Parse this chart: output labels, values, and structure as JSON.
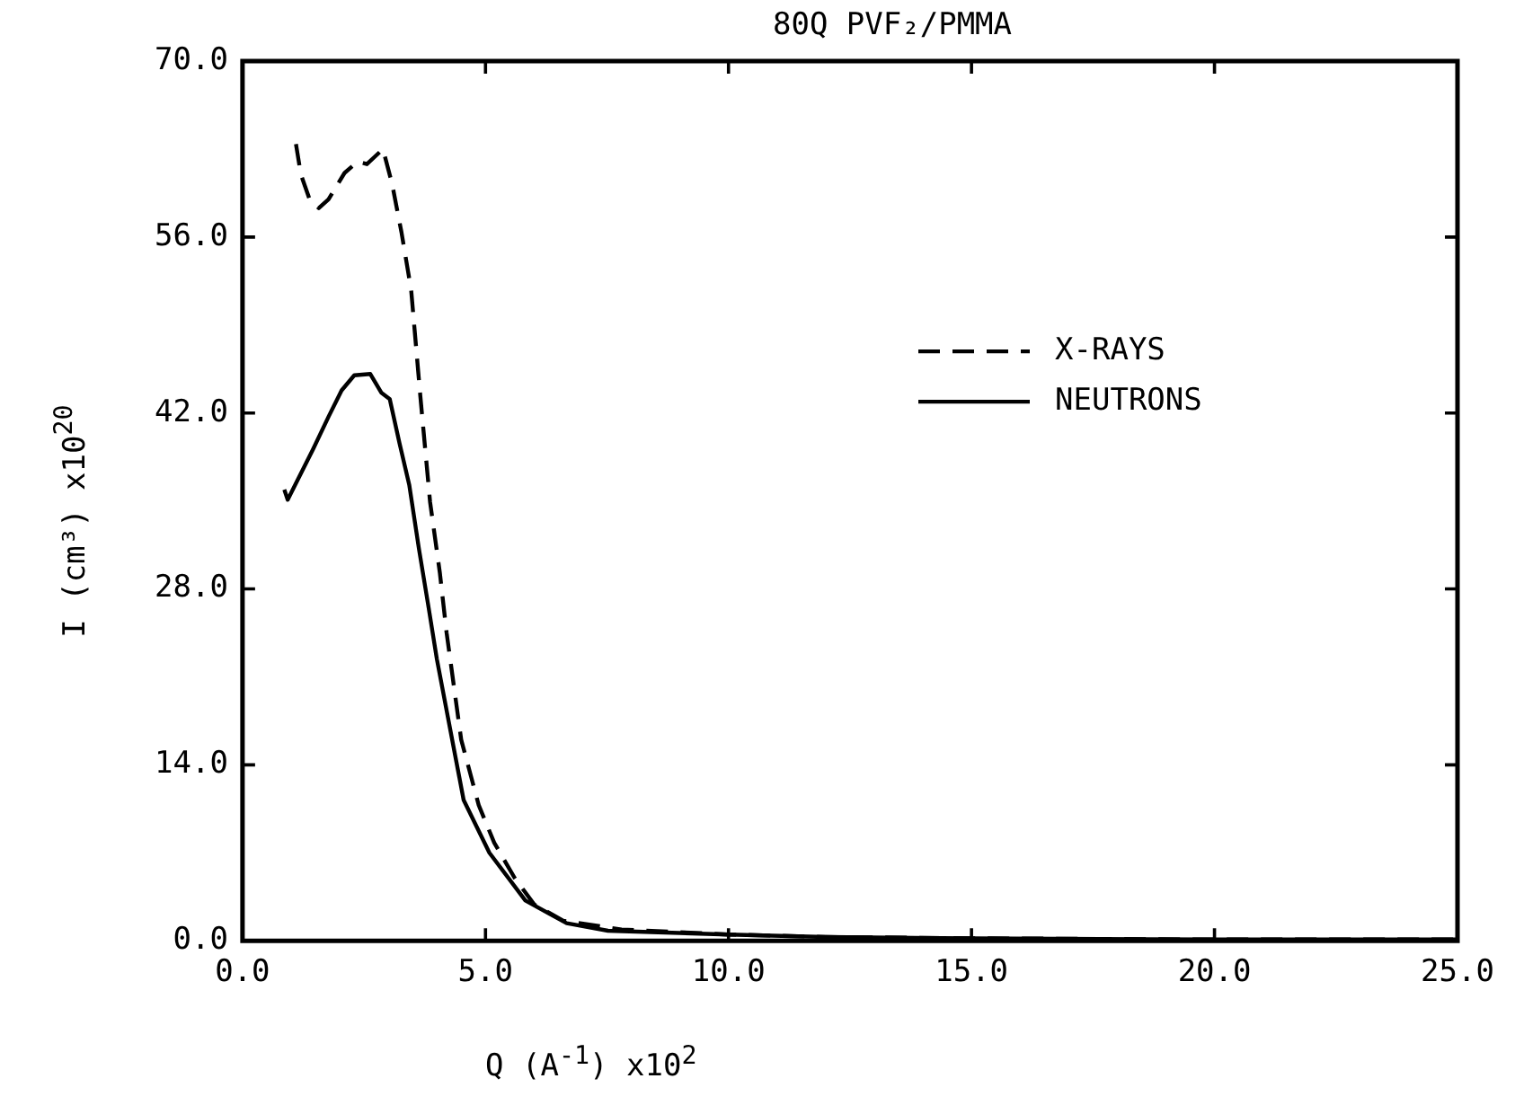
{
  "chart_data": {
    "type": "line",
    "title": "80Q PVF₂/PMMA",
    "xlabel": "Q (A$^{-1}$)     x10$^{2}$",
    "ylabel": "I (cm³)      x10$^{20}$",
    "xlim": [
      0,
      25
    ],
    "ylim": [
      0,
      70
    ],
    "xticks": [
      {
        "value": 0,
        "label": "0.0"
      },
      {
        "value": 5,
        "label": "5.0"
      },
      {
        "value": 10,
        "label": "10.0"
      },
      {
        "value": 15,
        "label": "15.0"
      },
      {
        "value": 20,
        "label": "20.0"
      },
      {
        "value": 25,
        "label": "25.0"
      }
    ],
    "yticks": [
      {
        "value": 0,
        "label": "0.0"
      },
      {
        "value": 14,
        "label": "14.0"
      },
      {
        "value": 28,
        "label": "28.0"
      },
      {
        "value": 42,
        "label": "42.0"
      },
      {
        "value": 56,
        "label": "56.0"
      },
      {
        "value": 70,
        "label": "70.0"
      }
    ],
    "grid": false,
    "legend": "right",
    "marker": "none",
    "series": [
      {
        "name": "X-RAYS",
        "color": "#000000",
        "line_style": "dashed",
        "x": [
          1.1,
          1.2,
          1.38,
          1.57,
          1.77,
          2.1,
          2.37,
          2.56,
          2.89,
          3.08,
          3.27,
          3.47,
          3.66,
          3.86,
          4.06,
          4.2,
          4.5,
          4.86,
          5.18,
          5.6,
          6.0,
          6.6,
          7.8,
          10,
          12,
          15,
          20,
          25
        ],
        "values": [
          63.4,
          61,
          59.0,
          58.3,
          59.0,
          61.1,
          62.0,
          61.8,
          63.0,
          60.2,
          56.4,
          51.8,
          43.3,
          34.9,
          29.3,
          24.5,
          16,
          10.8,
          7.8,
          5,
          2.9,
          1.6,
          0.9,
          0.5,
          0.3,
          0.2,
          0.1,
          0.1
        ]
      },
      {
        "name": "NEUTRONS",
        "color": "#000000",
        "line_style": "solid",
        "x": [
          0.86,
          0.93,
          1.45,
          1.77,
          2.04,
          2.3,
          2.63,
          2.86,
          3.03,
          3.23,
          3.43,
          3.63,
          3.83,
          4.0,
          4.55,
          5.08,
          5.82,
          6.67,
          7.52,
          10,
          12,
          15,
          20,
          25
        ],
        "values": [
          35.9,
          35.1,
          39.1,
          41.7,
          43.8,
          45.0,
          45.1,
          43.6,
          43.1,
          39.6,
          36.3,
          31.2,
          26.5,
          22.4,
          11.2,
          7.0,
          3.2,
          1.4,
          0.8,
          0.5,
          0.3,
          0.2,
          0.1,
          0.1
        ]
      }
    ]
  }
}
